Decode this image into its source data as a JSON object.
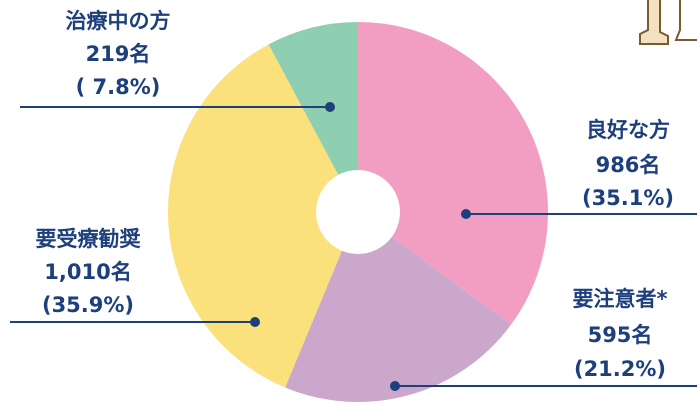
{
  "chart_data": {
    "type": "donut",
    "categories": [
      "良好な方",
      "要注意者*",
      "要受療勧奨",
      "治療中の方"
    ],
    "values": [
      986,
      595,
      1010,
      219
    ],
    "value_labels": [
      "986名",
      "595名",
      "1,010名",
      "219名"
    ],
    "percent_labels": [
      "(35.1%)",
      "(21.2%)",
      "(35.9%)",
      "( 7.8%)"
    ],
    "colors": [
      "#f19ec2",
      "#cba7cc",
      "#fbe17c",
      "#8fcfb1"
    ]
  }
}
